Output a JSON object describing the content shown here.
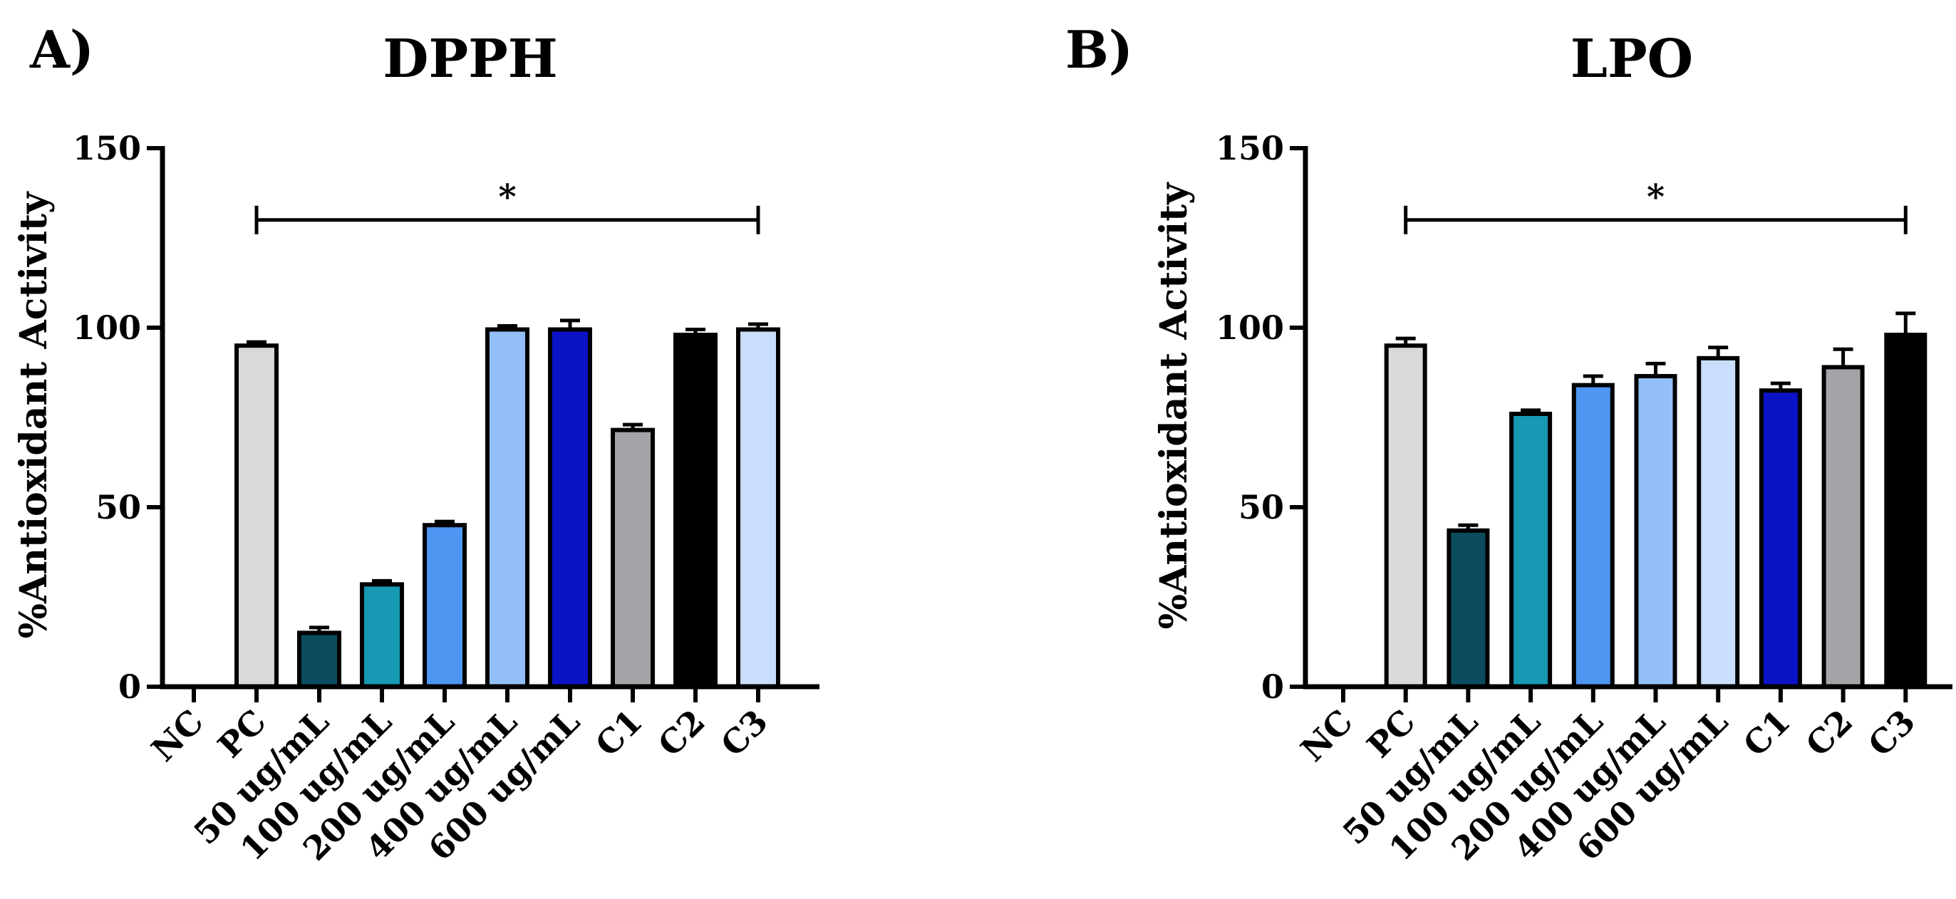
{
  "chart_data": [
    {
      "type": "bar",
      "panel": "A)",
      "title": "DPPH",
      "xlabel": "",
      "ylabel": "%Antioxidant Activity",
      "ylim": [
        0,
        150
      ],
      "yticks": [
        0,
        50,
        100,
        150
      ],
      "categories": [
        "NC",
        "PC",
        "50 ug/mL",
        "100 ug/mL",
        "200 ug/mL",
        "400 ug/mL",
        "600 ug/mL",
        "C1",
        "C2",
        "C3"
      ],
      "values": [
        0,
        95,
        15,
        28.5,
        45,
        99.5,
        99.5,
        71.5,
        98,
        99.5
      ],
      "errors": [
        0,
        1,
        1.5,
        1,
        1,
        1,
        2.5,
        1.5,
        1.5,
        1.5
      ],
      "colors": [
        "#ffffff",
        "#d9d9d9",
        "#0b4c5f",
        "#1798b3",
        "#4f96f2",
        "#93c1f7",
        "#0a14c6",
        "#a3a3a8",
        "#000000",
        "#c8defa"
      ],
      "significance": {
        "label": "*",
        "from": "PC",
        "to": "C3",
        "y": 130
      }
    },
    {
      "type": "bar",
      "panel": "B)",
      "title": "LPO",
      "xlabel": "",
      "ylabel": "%Antioxidant Activity",
      "ylim": [
        0,
        150
      ],
      "yticks": [
        0,
        50,
        100,
        150
      ],
      "categories": [
        "NC",
        "PC",
        "50 ug/mL",
        "100 ug/mL",
        "200 ug/mL",
        "400 ug/mL",
        "600 ug/mL",
        "C1",
        "C2",
        "C3"
      ],
      "values": [
        0,
        95,
        43.5,
        76,
        84,
        86.5,
        91.5,
        82.5,
        89,
        98
      ],
      "errors": [
        0,
        2,
        1.5,
        1,
        2.5,
        3.5,
        3,
        2,
        5,
        6
      ],
      "colors": [
        "#ffffff",
        "#d9d9d9",
        "#0b4c5f",
        "#1798b3",
        "#4f96f2",
        "#93c1f7",
        "#c8defa",
        "#0a14c6",
        "#a3a3a8",
        "#000000"
      ],
      "significance": {
        "label": "*",
        "from": "PC",
        "to": "C3",
        "y": 130
      }
    }
  ]
}
